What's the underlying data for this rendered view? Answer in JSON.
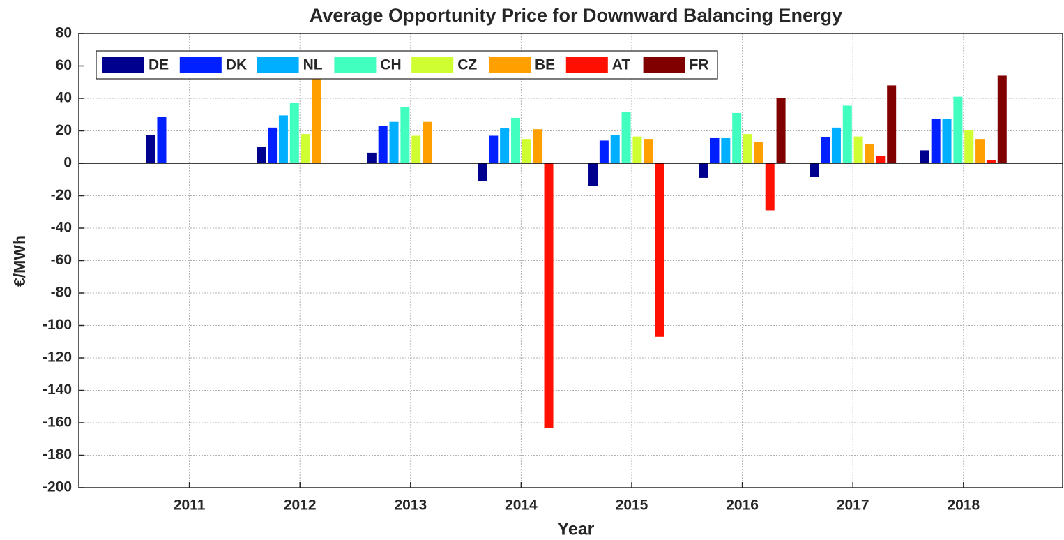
{
  "chart_data": {
    "type": "bar",
    "title": "Average Opportunity Price for Downward Balancing Energy",
    "x_label": "Year",
    "y_label": "€/MWh",
    "categories": [
      "2011",
      "2012",
      "2013",
      "2014",
      "2015",
      "2016",
      "2017",
      "2018"
    ],
    "series": [
      {
        "name": "DE",
        "color": "#00008f",
        "values": [
          17.5,
          10,
          6.5,
          -11,
          -14,
          -9,
          -8.5,
          8
        ]
      },
      {
        "name": "DK",
        "color": "#0020ff",
        "values": [
          28.5,
          22,
          23,
          17,
          14,
          15.5,
          16,
          27.5
        ]
      },
      {
        "name": "NL",
        "color": "#00afff",
        "values": [
          null,
          29.5,
          25.5,
          21.5,
          17.5,
          15.5,
          22,
          27.5
        ]
      },
      {
        "name": "CH",
        "color": "#40ffbf",
        "values": [
          null,
          37,
          34.5,
          28,
          31.5,
          31,
          35.5,
          41
        ]
      },
      {
        "name": "CZ",
        "color": "#cfff30",
        "values": [
          null,
          18,
          17,
          15,
          16.5,
          18,
          16.5,
          20.5
        ]
      },
      {
        "name": "BE",
        "color": "#ffa000",
        "values": [
          null,
          52,
          25.5,
          21,
          15,
          13,
          12,
          15
        ]
      },
      {
        "name": "AT",
        "color": "#ff1000",
        "values": [
          null,
          null,
          null,
          -163,
          -107,
          -29,
          4.5,
          2
        ]
      },
      {
        "name": "FR",
        "color": "#800000",
        "values": [
          null,
          null,
          null,
          null,
          null,
          40,
          48,
          54
        ]
      }
    ],
    "ylim": [
      -200,
      80
    ],
    "yticks": [
      -200,
      -180,
      -160,
      -140,
      -120,
      -100,
      -80,
      -60,
      -40,
      -20,
      0,
      20,
      40,
      60,
      80
    ],
    "grid": true,
    "legend": "top-left"
  }
}
